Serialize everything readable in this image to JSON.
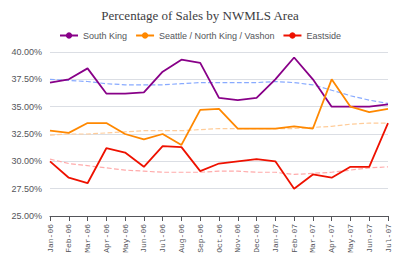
{
  "chart_data": {
    "type": "line",
    "title": "Percentage of Sales by NWMLS Area",
    "categories": [
      "Jan-06",
      "Feb-06",
      "Mar-06",
      "Apr-06",
      "May-06",
      "Jun-06",
      "Jul-06",
      "Aug-06",
      "Sep-06",
      "Oct-06",
      "Nov-06",
      "Dec-06",
      "Jan-07",
      "Feb-07",
      "Mar-07",
      "Apr-07",
      "May-07",
      "Jun-07",
      "Jul-07"
    ],
    "series": [
      {
        "color": "#88AAFF",
        "line_style": "dashed",
        "values": [
          37.5,
          37.4,
          37.3,
          37.1,
          37.0,
          37.0,
          37.0,
          37.1,
          37.2,
          37.2,
          37.2,
          37.2,
          37.3,
          37.2,
          37.0,
          36.5,
          36.0,
          35.6,
          35.3
        ]
      },
      {
        "color": "#FFCC99",
        "line_style": "dashed",
        "values": [
          32.4,
          32.5,
          32.5,
          32.6,
          32.7,
          32.8,
          32.8,
          32.8,
          32.9,
          33.0,
          33.0,
          33.0,
          33.0,
          33.0,
          33.1,
          33.2,
          33.4,
          33.5,
          33.5
        ]
      },
      {
        "color": "#FFAAAA",
        "line_style": "dashed",
        "values": [
          30.2,
          29.8,
          29.6,
          29.4,
          29.2,
          29.1,
          29.0,
          29.0,
          29.0,
          29.1,
          29.1,
          29.0,
          29.0,
          28.8,
          28.9,
          29.0,
          29.2,
          29.4,
          29.5
        ]
      },
      {
        "name": "South King",
        "color": "#880088",
        "line_style": "solid",
        "values": [
          37.2,
          37.5,
          38.5,
          36.2,
          36.2,
          36.3,
          38.2,
          39.3,
          39.0,
          35.8,
          35.6,
          35.8,
          37.5,
          39.5,
          37.5,
          35.0,
          35.0,
          35.0,
          35.2
        ]
      },
      {
        "name": "Seattle / North King / Vashon",
        "color": "#FF8800",
        "line_style": "solid",
        "values": [
          32.8,
          32.6,
          33.5,
          33.5,
          32.5,
          32.0,
          32.5,
          31.5,
          34.7,
          34.8,
          33.0,
          33.0,
          33.0,
          33.2,
          33.0,
          37.5,
          35.0,
          34.5,
          34.8
        ]
      },
      {
        "name": "Eastside",
        "color": "#EE1100",
        "line_style": "solid",
        "values": [
          30.0,
          28.5,
          28.0,
          31.2,
          30.8,
          29.5,
          31.4,
          31.3,
          29.1,
          29.8,
          30.0,
          30.2,
          30.0,
          27.5,
          28.8,
          28.5,
          29.5,
          29.5,
          33.5
        ]
      }
    ],
    "ylim": [
      25.0,
      40.0
    ],
    "yticks": [
      {
        "value": 25.0,
        "label": "25.00%"
      },
      {
        "value": 27.5,
        "label": "27.50%"
      },
      {
        "value": 30.0,
        "label": "30.00%"
      },
      {
        "value": 32.5,
        "label": "32.50%"
      },
      {
        "value": 35.0,
        "label": "35.00%"
      },
      {
        "value": 37.5,
        "label": "37.50%"
      },
      {
        "value": 40.0,
        "label": "40.00%"
      }
    ],
    "grid": true,
    "legend": "top"
  }
}
